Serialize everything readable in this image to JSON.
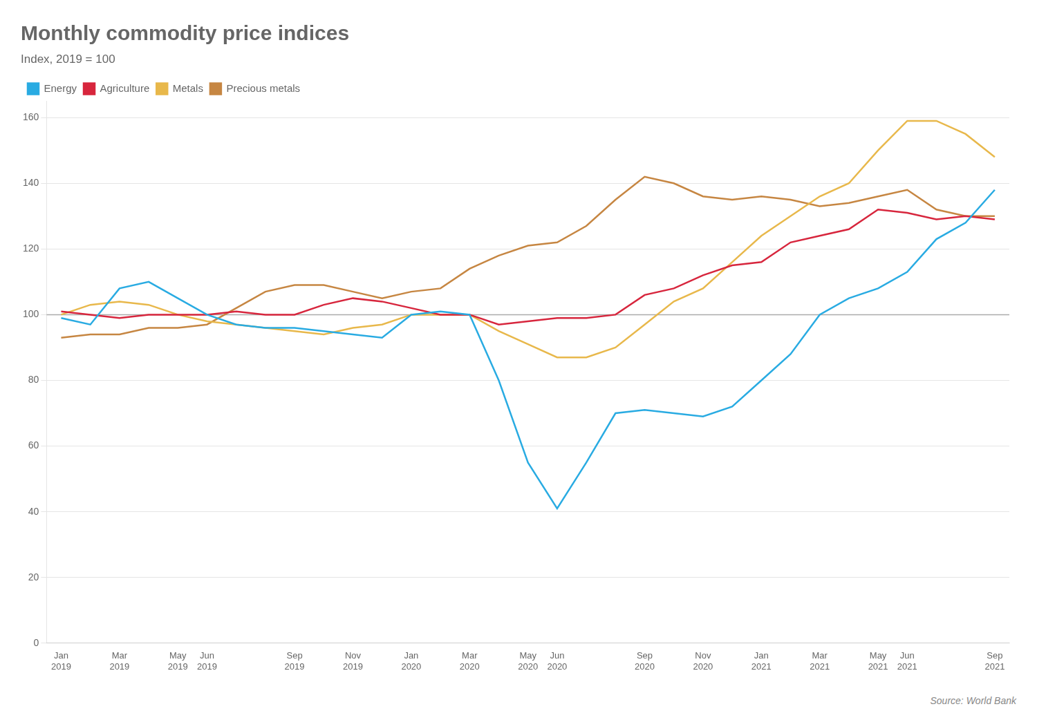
{
  "chart_data": {
    "type": "line",
    "title": "Monthly commodity price indices",
    "subtitle": "Index, 2019 = 100",
    "source": "Source: World Bank",
    "categories": [
      "Jan\n2019",
      null,
      "Mar\n2019",
      null,
      "May\n2019",
      "Jun\n2019",
      null,
      null,
      "Sep\n2019",
      null,
      "Nov\n2019",
      null,
      "Jan\n2020",
      null,
      "Mar\n2020",
      null,
      "May\n2020",
      "Jun\n2020",
      null,
      null,
      "Sep\n2020",
      null,
      "Nov\n2020",
      null,
      "Jan\n2021",
      null,
      "Mar\n2021",
      null,
      "May\n2021",
      "Jun\n2021",
      null,
      null,
      "Sep\n2021"
    ],
    "series": [
      {
        "name": "Energy",
        "color": "#29ABE2",
        "values": [
          99,
          97,
          108,
          110,
          105,
          100,
          97,
          96,
          96,
          95,
          94,
          93,
          100,
          101,
          100,
          80,
          55,
          41,
          55,
          70,
          71,
          70,
          69,
          72,
          80,
          88,
          100,
          105,
          108,
          113,
          123,
          128,
          138
        ]
      },
      {
        "name": "Agriculture",
        "color": "#D7263D",
        "values": [
          101,
          100,
          99,
          100,
          100,
          100,
          101,
          100,
          100,
          103,
          105,
          104,
          102,
          100,
          100,
          97,
          98,
          99,
          99,
          100,
          106,
          108,
          112,
          115,
          116,
          122,
          124,
          126,
          132,
          131,
          129,
          130,
          129
        ]
      },
      {
        "name": "Metals",
        "color": "#E8B84B",
        "values": [
          100,
          103,
          104,
          103,
          100,
          98,
          97,
          96,
          95,
          94,
          96,
          97,
          100,
          100,
          100,
          95,
          91,
          87,
          87,
          90,
          97,
          104,
          108,
          116,
          124,
          130,
          136,
          140,
          150,
          159,
          159,
          155,
          148
        ]
      },
      {
        "name": "Precious metals",
        "color": "#C68642",
        "values": [
          93,
          94,
          94,
          96,
          96,
          97,
          102,
          107,
          109,
          109,
          107,
          105,
          107,
          108,
          114,
          118,
          121,
          122,
          127,
          135,
          142,
          140,
          136,
          135,
          136,
          135,
          133,
          134,
          136,
          138,
          132,
          130,
          130
        ]
      }
    ],
    "reference_line": 100,
    "ylim": [
      0,
      165
    ],
    "yticks": [
      0,
      20,
      40,
      60,
      80,
      100,
      120,
      140,
      160
    ],
    "grid": "y",
    "legend": "top"
  }
}
